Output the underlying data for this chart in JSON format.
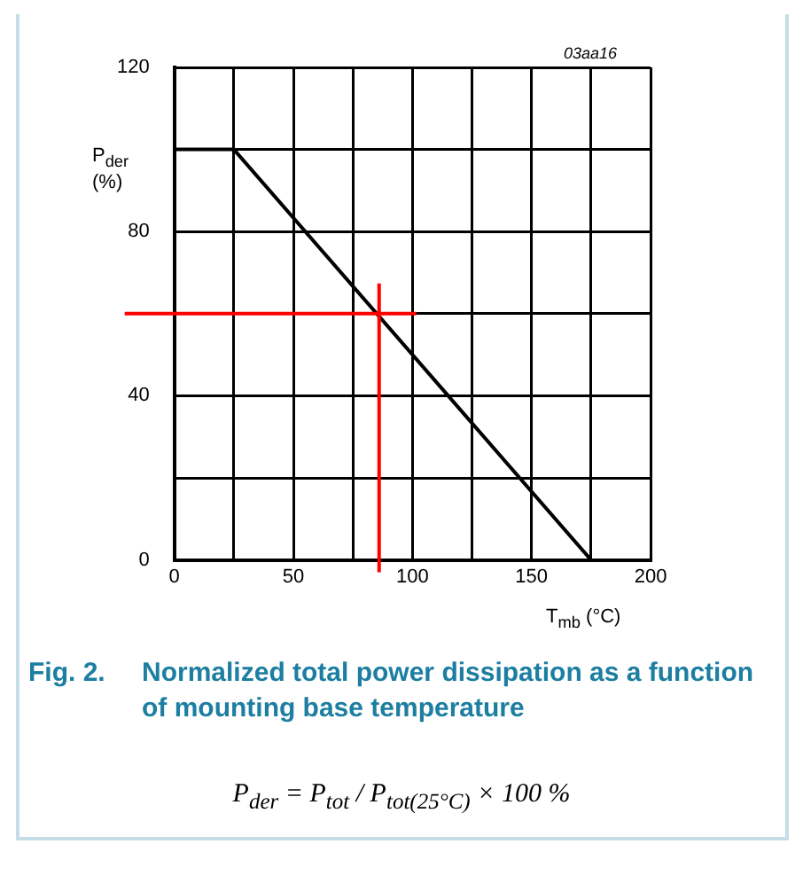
{
  "chart_data": {
    "type": "line",
    "title": "Fig. 2.    Normalized total power dissipation as a function of mounting base temperature",
    "xlabel": "T$_{mb}$ (°C)",
    "ylabel": "P$_{der}$ (%)",
    "x": [
      0,
      25,
      175
    ],
    "series": [
      {
        "color": "#000000",
        "values": [
          100,
          100,
          0
        ]
      }
    ],
    "xlim": [
      0,
      200
    ],
    "ylim": [
      0,
      120
    ],
    "xticks": [
      0,
      {
        "value": 25,
        "label": null
      },
      50,
      {
        "value": 75,
        "label": null
      },
      100,
      {
        "value": 125,
        "label": null
      },
      150,
      {
        "value": 175,
        "label": null
      },
      200
    ],
    "yticks": [
      0,
      {
        "value": 20,
        "label": null
      },
      40,
      {
        "value": 60,
        "label": null
      },
      80,
      {
        "value": 100,
        "label": null
      },
      120
    ],
    "grid": true,
    "legend": false,
    "marker": "none",
    "line_style": "solid",
    "ref_lines": [
      {
        "axis": "y",
        "value": 60,
        "color": "#ff0000"
      },
      {
        "axis": "x",
        "value": 86,
        "color": "#ff0000"
      }
    ],
    "annotations": [
      "03aa16",
      "P$_{der}$ = P$_{tot}$ / P$_{tot(25°C)}$ × 100 %"
    ]
  }
}
